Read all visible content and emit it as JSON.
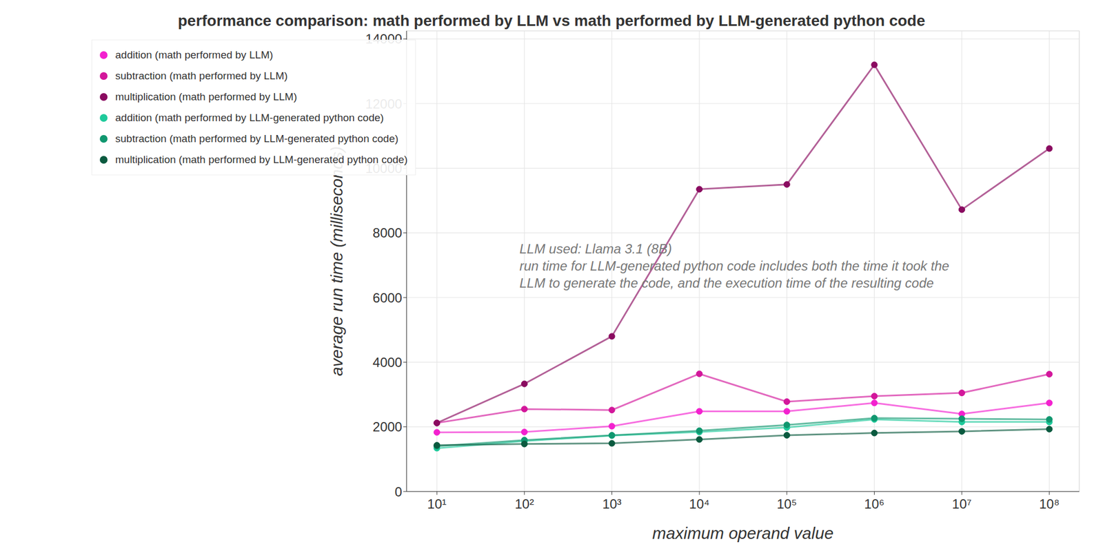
{
  "chart_data": {
    "type": "line",
    "title": "performance comparison: math performed by LLM vs math performed by LLM-generated python code",
    "x_label": "maximum operand value",
    "y_label": "average run time (milliseconds)",
    "annotations": [
      "LLM used: Llama 3.1 (8B)",
      "run time for LLM-generated python code includes both the time it took the",
      "LLM to generate the code, and the execution time of the resulting code"
    ],
    "x": [
      10,
      100,
      1000,
      10000,
      100000,
      1000000,
      10000000,
      100000000
    ],
    "series": [
      {
        "name": "addition (math performed by LLM)",
        "color": "#f321cf",
        "values": [
          1830,
          1840,
          2020,
          2480,
          2480,
          2740,
          2400,
          2740
        ]
      },
      {
        "name": "subtraction (math performed by LLM)",
        "color": "#d3179b",
        "values": [
          2120,
          2550,
          2520,
          3640,
          2780,
          2950,
          3050,
          3630
        ]
      },
      {
        "name": "multiplication (math performed by LLM)",
        "color": "#8a0b60",
        "values": [
          2120,
          3330,
          4800,
          9350,
          9500,
          13200,
          8720,
          10610
        ]
      },
      {
        "name": "addition (math performed by LLM-generated python code)",
        "color": "#1fca9b",
        "values": [
          1340,
          1560,
          1730,
          1840,
          1980,
          2230,
          2150,
          2150
        ]
      },
      {
        "name": "subtraction (math performed by LLM-generated python code)",
        "color": "#10976f",
        "values": [
          1400,
          1590,
          1740,
          1880,
          2060,
          2270,
          2250,
          2230
        ]
      },
      {
        "name": "multiplication (math performed by LLM-generated python code)",
        "color": "#0b5a3f",
        "values": [
          1430,
          1470,
          1490,
          1610,
          1740,
          1810,
          1860,
          1930
        ]
      }
    ],
    "xlim": [
      4.5,
      220000000
    ],
    "ylim": [
      0,
      14250
    ],
    "xticks": [
      {
        "value": 10,
        "label": "10¹"
      },
      {
        "value": 100,
        "label": "10²"
      },
      {
        "value": 1000,
        "label": "10³"
      },
      {
        "value": 10000,
        "label": "10⁴"
      },
      {
        "value": 100000,
        "label": "10⁵"
      },
      {
        "value": 1000000,
        "label": "10⁶"
      },
      {
        "value": 10000000,
        "label": "10⁷"
      },
      {
        "value": 100000000,
        "label": "10⁸"
      }
    ],
    "yticks": [
      0,
      2000,
      4000,
      6000,
      8000,
      10000,
      12000,
      14000
    ],
    "log": "x",
    "grid": true,
    "legend": "upper left",
    "marker": "circle"
  }
}
